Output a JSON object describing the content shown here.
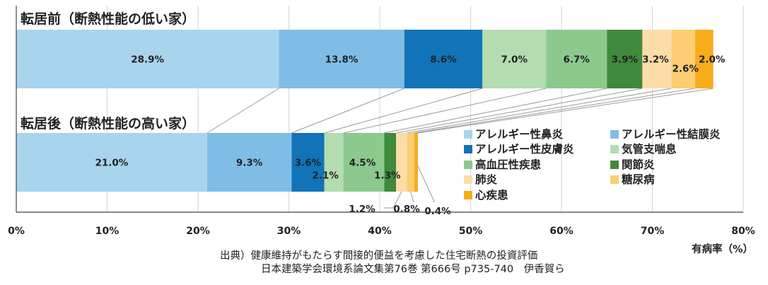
{
  "chart_data": {
    "type": "bar",
    "orientation": "horizontal",
    "stacked": true,
    "xlim": [
      0,
      80
    ],
    "x_ticks": [
      "0%",
      "10%",
      "20%",
      "30%",
      "40%",
      "50%",
      "60%",
      "70%",
      "80%"
    ],
    "xlabel": "有病率（%）",
    "grid": true,
    "legend_position": "bottom-right",
    "groups": [
      {
        "label": "転居前（断熱性能の低い家）",
        "values": [
          28.9,
          13.8,
          8.6,
          7.0,
          6.7,
          3.9,
          3.2,
          2.6,
          2.0
        ],
        "value_labels": [
          "28.9%",
          "13.8%",
          "8.6%",
          "7.0%",
          "6.7%",
          "3.9%",
          "3.2%",
          "2.6%",
          "2.0%"
        ]
      },
      {
        "label": "転居後（断熱性能の高い家）",
        "values": [
          21.0,
          9.3,
          3.6,
          2.1,
          4.5,
          1.3,
          1.2,
          0.8,
          0.4
        ],
        "value_labels": [
          "21.0%",
          "9.3%",
          "3.6%",
          "2.1%",
          "4.5%",
          "1.3%",
          "1.2%",
          "0.8%",
          "0.4%"
        ]
      }
    ],
    "series": [
      {
        "name": "アレルギー性鼻炎",
        "color": "#a9d4ee"
      },
      {
        "name": "アレルギー性結膜炎",
        "color": "#80bde6"
      },
      {
        "name": "アレルギー性皮膚炎",
        "color": "#1173b8"
      },
      {
        "name": "気管支喘息",
        "color": "#b3dcb0"
      },
      {
        "name": "高血圧性疾患",
        "color": "#8cc98d"
      },
      {
        "name": "関節炎",
        "color": "#3f8a3c"
      },
      {
        "name": "肺炎",
        "color": "#fcdda8"
      },
      {
        "name": "糖尿病",
        "color": "#fccd72"
      },
      {
        "name": "心疾患",
        "color": "#f7ac1c"
      }
    ]
  },
  "source": {
    "line1": "出典）健康維持がもたらす間接的便益を考慮した住宅断熱の投資評価",
    "line2": "日本建築学会環境系論文集第76巻 第666号 p735-740　伊香賀ら"
  }
}
